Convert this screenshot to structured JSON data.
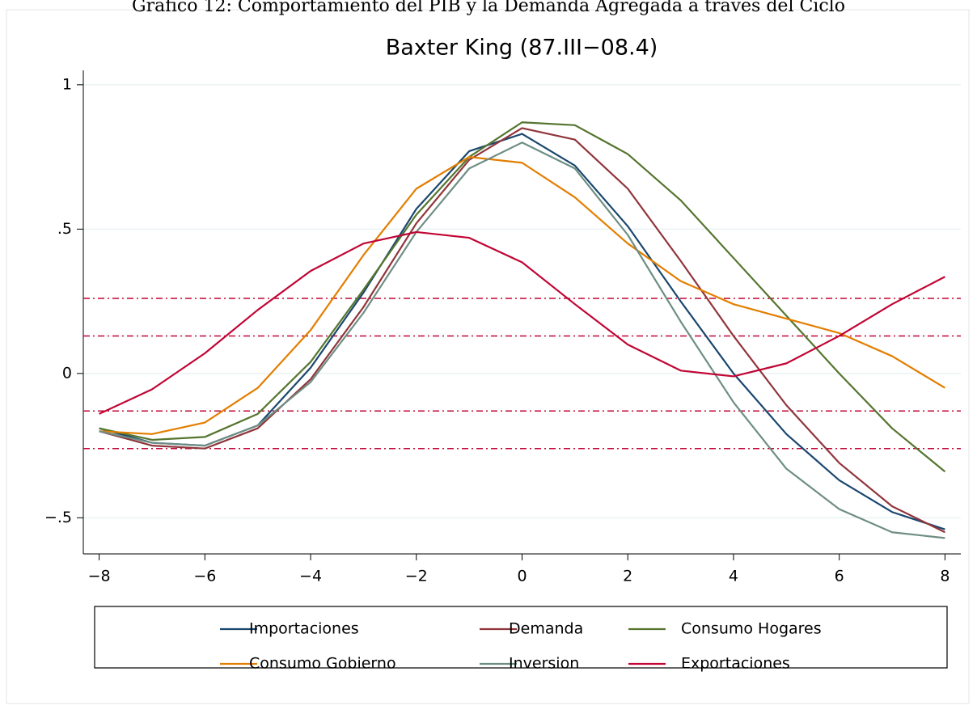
{
  "caption": "Gráfico 12: Comportamiento del PIB y la Demanda Agregada a través del Ciclo",
  "chart_data": {
    "type": "line",
    "title": "Baxter King (87.III−08.4)",
    "x": [
      -8,
      -7,
      -6,
      -5,
      -4,
      -3,
      -2,
      -1,
      0,
      1,
      2,
      3,
      4,
      5,
      6,
      7,
      8
    ],
    "xlim": [
      -8.3,
      8.3
    ],
    "xticks": [
      {
        "value": -8,
        "label": "−8"
      },
      {
        "value": -6,
        "label": "−6"
      },
      {
        "value": -4,
        "label": "−4"
      },
      {
        "value": -2,
        "label": "−2"
      },
      0,
      2,
      4,
      6,
      8
    ],
    "ylim": [
      -0.625,
      1.05
    ],
    "yticks": [
      {
        "value": -0.5,
        "label": "−.5"
      },
      0,
      {
        "value": 0.5,
        "label": ".5"
      },
      1
    ],
    "grid": true,
    "reference_lines": {
      "values": [
        0.26,
        0.13,
        -0.13,
        -0.26
      ],
      "color": "#c10534"
    },
    "legend": "bottom",
    "series": [
      {
        "name": "Importaciones",
        "color": "#1a476f",
        "values": [
          -0.19,
          -0.24,
          -0.25,
          -0.18,
          0.02,
          0.28,
          0.57,
          0.77,
          0.83,
          0.72,
          0.51,
          0.25,
          0.0,
          -0.21,
          -0.37,
          -0.48,
          -0.54
        ]
      },
      {
        "name": "Demanda",
        "color": "#90353b",
        "values": [
          -0.2,
          -0.25,
          -0.26,
          -0.19,
          -0.02,
          0.23,
          0.52,
          0.74,
          0.85,
          0.81,
          0.64,
          0.39,
          0.13,
          -0.11,
          -0.31,
          -0.46,
          -0.55
        ]
      },
      {
        "name": "Consumo Hogares",
        "color": "#55752f",
        "values": [
          -0.19,
          -0.23,
          -0.22,
          -0.14,
          0.04,
          0.29,
          0.55,
          0.75,
          0.87,
          0.86,
          0.76,
          0.6,
          0.4,
          0.2,
          0.0,
          -0.19,
          -0.34
        ]
      },
      {
        "name": "Consumo Gobierno",
        "color": "#e37e00",
        "values": [
          -0.2,
          -0.21,
          -0.17,
          -0.05,
          0.15,
          0.41,
          0.64,
          0.75,
          0.73,
          0.61,
          0.45,
          0.32,
          0.24,
          0.19,
          0.14,
          0.06,
          -0.05
        ]
      },
      {
        "name": "Inversion",
        "color": "#6e8e84",
        "values": [
          -0.2,
          -0.24,
          -0.25,
          -0.18,
          -0.03,
          0.21,
          0.49,
          0.71,
          0.8,
          0.71,
          0.48,
          0.18,
          -0.1,
          -0.33,
          -0.47,
          -0.55,
          -0.57
        ]
      },
      {
        "name": "Exportaciones",
        "color": "#c10534",
        "values": [
          -0.14,
          -0.055,
          0.07,
          0.22,
          0.355,
          0.45,
          0.49,
          0.47,
          0.385,
          0.24,
          0.1,
          0.01,
          -0.01,
          0.035,
          0.13,
          0.24,
          0.335
        ]
      }
    ]
  }
}
